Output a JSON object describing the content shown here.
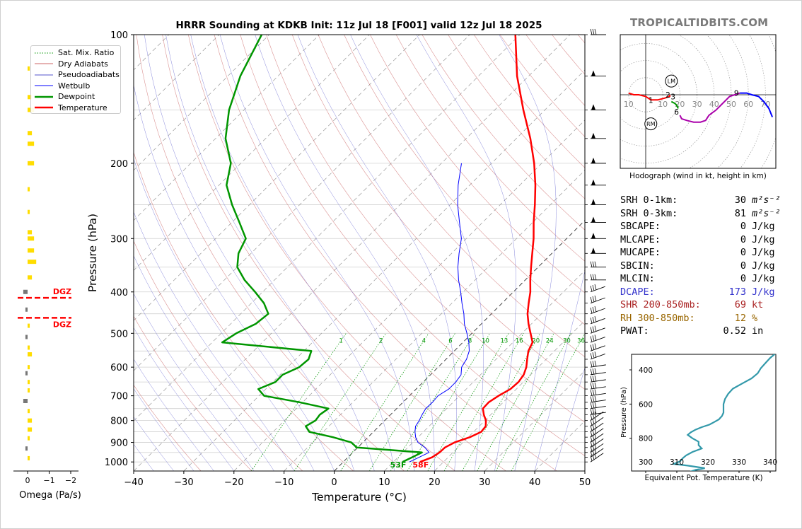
{
  "brand": "TROPICALTIDBITS.COM",
  "title": "HRRR Sounding at KDKB Init: 11z Jul 18 [F001] valid 12z Jul 18 2025",
  "colors": {
    "temperature": "#ff0000",
    "dewpoint": "#009600",
    "wetbulb": "#0000ff",
    "dry_adiabat": "#cc6666",
    "moist_adiabat": "#5555cc",
    "mixing_ratio": "#009600",
    "isotherm": "#999999",
    "dgz": "#ff0000",
    "theta_e": "#3399aa",
    "dcape_text": "#3333cc",
    "shr_text": "#aa2222",
    "rh_text": "#996600"
  },
  "legend": [
    {
      "label": "Sat. Mix. Ratio",
      "style": "mixing"
    },
    {
      "label": "Dry Adiabats",
      "style": "dry"
    },
    {
      "label": "Pseudoadiabats",
      "style": "moist"
    },
    {
      "label": "Wetbulb",
      "style": "wetbulb"
    },
    {
      "label": "Dewpoint",
      "style": "dewpoint"
    },
    {
      "label": "Temperature",
      "style": "temperature"
    }
  ],
  "chart_data": [
    {
      "type": "line",
      "name": "skew-t",
      "xlabel": "Temperature (°C)",
      "ylabel": "Pressure (hPa)",
      "xlim": [
        -40,
        50
      ],
      "ylim": [
        1050,
        100
      ],
      "x_ticks": [
        -40,
        -30,
        -20,
        -10,
        0,
        10,
        20,
        30,
        40,
        50
      ],
      "y_ticks": [
        100,
        200,
        300,
        400,
        500,
        600,
        700,
        800,
        900,
        1000
      ],
      "mixing_ratio_labels": [
        "1",
        "2",
        "4",
        "6",
        "8",
        "10",
        "13",
        "16",
        "20",
        "24",
        "30",
        "36"
      ],
      "mixing_ratio_values": [
        1,
        2,
        4,
        6,
        8,
        10,
        13,
        16,
        20,
        24,
        30,
        36
      ],
      "surface_temperature_label": "58F",
      "surface_dewpoint_label": "53F",
      "temperature": {
        "p": [
          1000,
          975,
          950,
          925,
          900,
          875,
          850,
          825,
          800,
          775,
          750,
          725,
          700,
          675,
          650,
          625,
          600,
          575,
          550,
          525,
          500,
          475,
          450,
          425,
          400,
          375,
          350,
          325,
          300,
          275,
          250,
          225,
          200,
          175,
          150,
          125,
          100
        ],
        "t": [
          15.3,
          16.8,
          17.3,
          17.4,
          18.3,
          20.3,
          21.5,
          21.3,
          20.2,
          18.6,
          17.2,
          17.1,
          17.8,
          18.8,
          19.0,
          18.6,
          17.6,
          16.2,
          14.8,
          13.9,
          11.7,
          9.4,
          7.2,
          5.3,
          3.4,
          1.0,
          -1.4,
          -3.9,
          -6.6,
          -9.8,
          -13.1,
          -16.9,
          -21.5,
          -27.2,
          -34.3,
          -42.3,
          -50.9
        ]
      },
      "dewpoint": {
        "p": [
          1000,
          975,
          950,
          925,
          900,
          875,
          850,
          825,
          800,
          775,
          750,
          725,
          700,
          675,
          650,
          625,
          600,
          575,
          550,
          525,
          500,
          475,
          450,
          425,
          400,
          375,
          350,
          325,
          300,
          275,
          250,
          225,
          200,
          175,
          150,
          125,
          100
        ],
        "td": [
          11.8,
          12.8,
          13.8,
          -0.2,
          -2.3,
          -7.0,
          -12.8,
          -14.6,
          -13.8,
          -14.1,
          -13.6,
          -20.6,
          -29.0,
          -31.5,
          -29.5,
          -29.5,
          -27.7,
          -27.4,
          -28.5,
          -48.0,
          -47.0,
          -45.0,
          -44.5,
          -47.5,
          -51.5,
          -56.0,
          -60.0,
          -62.5,
          -64.0,
          -68.5,
          -73.5,
          -78.5,
          -82.0,
          -88.0,
          -93.0,
          -97.5,
          -101.5
        ]
      },
      "wetbulb": {
        "p": [
          1000,
          975,
          950,
          925,
          900,
          875,
          850,
          825,
          800,
          775,
          750,
          725,
          700,
          675,
          650,
          625,
          600,
          575,
          550,
          525,
          500,
          475,
          450,
          425,
          400,
          375,
          350,
          325,
          300,
          275,
          250,
          225,
          200
        ],
        "tw": [
          13.2,
          14.2,
          15.2,
          13.4,
          11.0,
          9.5,
          8.3,
          7.3,
          6.9,
          6.3,
          5.8,
          5.9,
          5.7,
          6.5,
          6.5,
          6.1,
          4.7,
          4.1,
          3.0,
          1.2,
          -1.0,
          -3.4,
          -5.5,
          -8.0,
          -10.5,
          -13.3,
          -16.0,
          -18.5,
          -21.0,
          -24.6,
          -28.5,
          -32.3,
          -36.0
        ]
      }
    },
    {
      "type": "line",
      "name": "omega",
      "xlabel": "Omega (Pa/s)",
      "x_ticks": [
        "0",
        "−1",
        "−2"
      ],
      "dgz_labels": [
        "DGZ",
        "DGZ"
      ],
      "dgz_p": [
        413,
        460
      ],
      "p": [
        120,
        140,
        150,
        170,
        180,
        200,
        230,
        260,
        290,
        300,
        320,
        340,
        370,
        400,
        440,
        480,
        510,
        540,
        560,
        600,
        620,
        650,
        680,
        720,
        760,
        800,
        840,
        880,
        930,
        980
      ],
      "omega": [
        0.1,
        0.2,
        0.3,
        0.2,
        0.3,
        0.3,
        0.1,
        0.1,
        0.2,
        0.3,
        0.3,
        0.4,
        0.2,
        -0.2,
        -0.1,
        0.1,
        -0.1,
        0.1,
        0.2,
        0.1,
        -0.1,
        0.1,
        0.1,
        -0.2,
        0.1,
        0.2,
        0.2,
        0.1,
        -0.1,
        0.1
      ]
    },
    {
      "type": "line",
      "name": "hodograph",
      "caption": "Hodograph (wind in kt, height in km)",
      "ring_labels": [
        "10",
        "10",
        "20",
        "30",
        "40",
        "50",
        "60",
        "70"
      ],
      "markers": {
        "LM": [
          15,
          8
        ],
        "RM": [
          3,
          -17
        ]
      },
      "height_labels": [
        {
          "t": "1",
          "u": 3,
          "v": -3
        },
        {
          "t": "2",
          "u": 13,
          "v": 0
        },
        {
          "t": "3",
          "u": 16,
          "v": -1
        },
        {
          "t": "6",
          "u": 18,
          "v": -10
        },
        {
          "t": "9",
          "u": 53,
          "v": 1
        }
      ],
      "segments": [
        {
          "layer": "0-3km",
          "color": "#ff0000",
          "u": [
            -10,
            -7,
            -4,
            0,
            3,
            7,
            11,
            14,
            14
          ],
          "v": [
            1,
            0,
            0,
            -1,
            -3,
            -3,
            -2,
            -1,
            0
          ]
        },
        {
          "layer": "3-6km",
          "color": "#009600",
          "u": [
            15,
            17,
            18,
            19
          ],
          "v": [
            -4,
            -5,
            -6,
            -8
          ]
        },
        {
          "layer": "6-9km",
          "color": "#aa00aa",
          "u": [
            20,
            21,
            24,
            28,
            32,
            35,
            37,
            41,
            44,
            47,
            49,
            52,
            55
          ],
          "v": [
            -12,
            -14,
            -15,
            -16,
            -16,
            -15,
            -12,
            -9,
            -6,
            -3,
            -1,
            0,
            1
          ]
        },
        {
          "layer": "9-12km",
          "color": "#0000ff",
          "u": [
            55,
            59,
            62,
            66,
            69,
            72,
            74
          ],
          "v": [
            1,
            1,
            0,
            -1,
            -4,
            -8,
            -13
          ]
        }
      ]
    },
    {
      "type": "line",
      "name": "theta-e",
      "xlabel": "Equivalent Pot. Temperature (K)",
      "ylabel": "Pressure (hPa)",
      "x_ticks": [
        300,
        310,
        320,
        330,
        340
      ],
      "y_ticks": [
        400,
        600,
        800
      ],
      "p": [
        1000,
        985,
        975,
        960,
        950,
        935,
        915,
        900,
        880,
        860,
        840,
        820,
        800,
        780,
        765,
        750,
        735,
        720,
        705,
        690,
        670,
        650,
        630,
        600,
        570,
        540,
        510,
        480,
        450,
        420,
        390,
        360,
        330,
        300
      ],
      "theta_e": [
        313.5,
        316.0,
        319.0,
        313.5,
        309.0,
        311.0,
        312.0,
        313.0,
        315.0,
        318.0,
        317.0,
        317.0,
        315.0,
        313.5,
        314.5,
        316.0,
        318.0,
        320.5,
        322.0,
        323.5,
        324.5,
        325.0,
        325.0,
        325.0,
        325.5,
        326.5,
        328.0,
        331.0,
        334.0,
        336.0,
        337.0,
        338.5,
        340.0,
        342.0
      ]
    }
  ],
  "stats": [
    {
      "label": "SRH 0-1km:",
      "value": "30",
      "unit": "m²s⁻²",
      "color": "#000000"
    },
    {
      "label": "SRH 0-3km:",
      "value": "81",
      "unit": "m²s⁻²",
      "color": "#000000"
    },
    {
      "label": "SBCAPE:",
      "value": "0",
      "unit": "J/kg",
      "color": "#000000"
    },
    {
      "label": "MLCAPE:",
      "value": "0",
      "unit": "J/kg",
      "color": "#000000"
    },
    {
      "label": "MUCAPE:",
      "value": "0",
      "unit": "J/kg",
      "color": "#000000"
    },
    {
      "label": "SBCIN:",
      "value": "0",
      "unit": "J/kg",
      "color": "#000000"
    },
    {
      "label": "MLCIN:",
      "value": "0",
      "unit": "J/kg",
      "color": "#000000"
    },
    {
      "label": "DCAPE:",
      "value": "173",
      "unit": "J/kg",
      "color": "#3333cc"
    },
    {
      "label": "SHR 200-850mb:",
      "value": "69",
      "unit": "kt",
      "color": "#aa2222"
    },
    {
      "label": "RH 300-850mb:",
      "value": "12",
      "unit": "%",
      "color": "#996600"
    },
    {
      "label": "PWAT:",
      "value": "0.52",
      "unit": "in",
      "color": "#000000"
    }
  ]
}
